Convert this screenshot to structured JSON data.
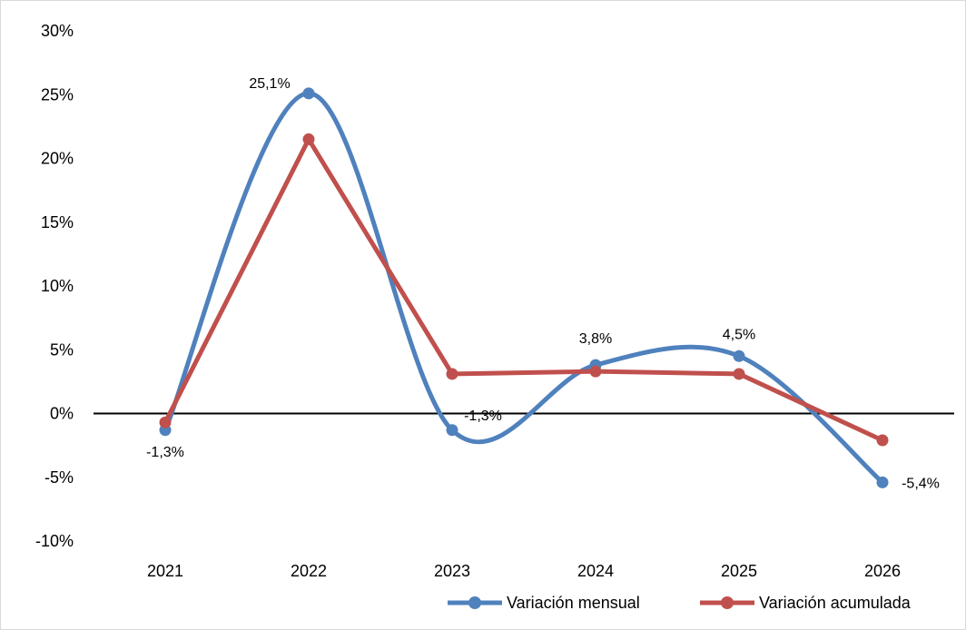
{
  "chart_data": {
    "type": "line",
    "title": "",
    "xlabel": "",
    "ylabel": "",
    "categories": [
      "2021",
      "2022",
      "2023",
      "2024",
      "2025",
      "2026"
    ],
    "ylim": [
      -10,
      30
    ],
    "yticks": [
      "30%",
      "25%",
      "20%",
      "15%",
      "10%",
      "5%",
      "0%",
      "-5%",
      "-10%"
    ],
    "ytick_values": [
      30,
      25,
      20,
      15,
      10,
      5,
      0,
      -5,
      -10
    ],
    "grid": false,
    "legend_position": "bottom-right",
    "series": [
      {
        "name": "Variación mensual",
        "color": "#4f81bd",
        "smooth": true,
        "values": [
          -1.3,
          25.1,
          -1.3,
          3.8,
          4.5,
          -5.4
        ],
        "labels": [
          "-1,3%",
          "25,1%",
          "-1,3%",
          "3,8%",
          "4,5%",
          "-5,4%"
        ]
      },
      {
        "name": "Variación acumulada",
        "color": "#c0504d",
        "smooth": false,
        "values": [
          -0.7,
          21.5,
          3.1,
          3.3,
          3.1,
          -2.1
        ],
        "labels": []
      }
    ]
  }
}
